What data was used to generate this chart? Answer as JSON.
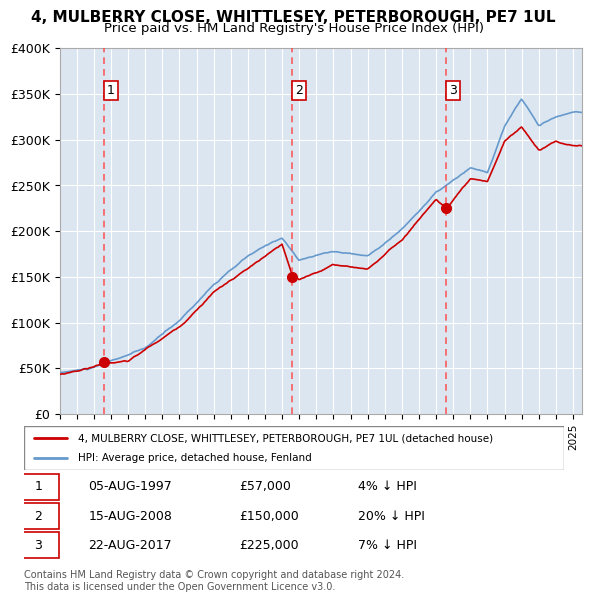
{
  "title": "4, MULBERRY CLOSE, WHITTLESEY, PETERBOROUGH, PE7 1UL",
  "subtitle": "Price paid vs. HM Land Registry's House Price Index (HPI)",
  "xlabel": "",
  "ylabel": "",
  "ylim": [
    0,
    400000
  ],
  "xlim_start": 1995.0,
  "xlim_end": 2025.5,
  "yticks": [
    0,
    50000,
    100000,
    150000,
    200000,
    250000,
    300000,
    350000,
    400000
  ],
  "ytick_labels": [
    "£0",
    "£50K",
    "£100K",
    "£150K",
    "£200K",
    "£250K",
    "£300K",
    "£350K",
    "£400K"
  ],
  "transactions": [
    {
      "date": "05-AUG-1997",
      "year": 1997.6,
      "price": 57000,
      "label": "1"
    },
    {
      "date": "15-AUG-2008",
      "year": 2008.6,
      "price": 150000,
      "label": "2"
    },
    {
      "date": "22-AUG-2017",
      "year": 2017.6,
      "price": 225000,
      "label": "3"
    }
  ],
  "legend_property": "4, MULBERRY CLOSE, WHITTLESEY, PETERBOROUGH, PE7 1UL (detached house)",
  "legend_hpi": "HPI: Average price, detached house, Fenland",
  "table_rows": [
    {
      "num": "1",
      "date": "05-AUG-1997",
      "price": "£57,000",
      "hpi": "4% ↓ HPI"
    },
    {
      "num": "2",
      "date": "15-AUG-2008",
      "price": "£150,000",
      "hpi": "20% ↓ HPI"
    },
    {
      "num": "3",
      "date": "22-AUG-2017",
      "price": "£225,000",
      "hpi": "7% ↓ HPI"
    }
  ],
  "footer": "Contains HM Land Registry data © Crown copyright and database right 2024.\nThis data is licensed under the Open Government Licence v3.0.",
  "property_line_color": "#cc0000",
  "hpi_line_color": "#6699cc",
  "dashed_line_color": "#ff4444",
  "background_color": "#dce6f1",
  "plot_bg_color": "#dce6f1"
}
